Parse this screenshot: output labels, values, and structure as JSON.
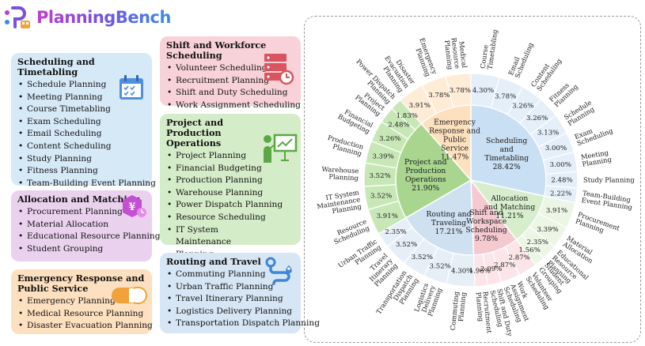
{
  "logo": {
    "text": "PlanningBench"
  },
  "categories": [
    {
      "id": "scheduling",
      "title": "Scheduling and Timetabling",
      "fill": "#d6e9f7",
      "accent": "#4f8fe0",
      "items": [
        "Schedule Planning",
        "Meeting Planning",
        "Course Timetabling",
        "Exam Scheduling",
        "Email Scheduling",
        "Content Scheduling",
        "Study Planning",
        "Fitness Planning",
        "Team-Building Event Planning"
      ]
    },
    {
      "id": "allocation",
      "title": "Allocation and Matching",
      "fill": "#ead2ef",
      "accent": "#c34fd1",
      "items": [
        "Procurement Planning",
        "Material Allocation",
        "Educational Resource Planning",
        "Student Grouping"
      ]
    },
    {
      "id": "emergency",
      "title": "Emergency Response and Public Service",
      "fill": "#fde0bf",
      "accent": "#f0a33b",
      "items": [
        "Emergency Planning",
        "Medical Resource Planning",
        "Disaster Evacuation Planning"
      ]
    },
    {
      "id": "shift",
      "title": "Shift and Workforce Scheduling",
      "fill": "#f8d2d8",
      "accent": "#d85560",
      "items": [
        "Volunteer Scheduling",
        "Recruitment Planning",
        "Shift and Duty Scheduling",
        "Work Assignment Scheduling"
      ]
    },
    {
      "id": "project",
      "title": "Project and Production Operations",
      "fill": "#d5ecc9",
      "accent": "#5aa844",
      "items": [
        "Project Planning",
        "Financial Budgeting",
        "Production Planning",
        "Warehouse Planning",
        "Power Dispatch Planning",
        "Resource Scheduling",
        "IT System Maintenance Planning"
      ]
    },
    {
      "id": "routing",
      "title": "Routing and Travel",
      "fill": "#d6e6f5",
      "accent": "#3e86d6",
      "items": [
        "Commuting Planning",
        "Urban Traffic Planning",
        "Travel Itinerary Planning",
        "Logistics Delivery Planning",
        "Transportation Dispatch Planning"
      ]
    }
  ],
  "chart_data": {
    "type": "sunburst",
    "inner": [
      {
        "label": "Scheduling and Timetabling",
        "value": 28.42,
        "value_label": "28.42%",
        "color": "#c9dff3",
        "outer_color": "#e4eff9"
      },
      {
        "label": "Allocation and Matching",
        "value": 11.21,
        "value_label": "11.21%",
        "color": "#d7eecd",
        "outer_color": "#ebf6e5"
      },
      {
        "label": "Shift and Workspace Scheduling",
        "value": 9.78,
        "value_label": "9.78%",
        "color": "#f5c9d0",
        "outer_color": "#fbe5e8"
      },
      {
        "label": "Routing and Traveling",
        "value": 17.21,
        "value_label": "17.21%",
        "color": "#cfe0f1",
        "outer_color": "#e6eff8"
      },
      {
        "label": "Project and Production Operations",
        "value": 21.9,
        "value_label": "21.90%",
        "color": "#a9d68f",
        "outer_color": "#c8e7b6"
      },
      {
        "label": "Emergency Response and Public Service",
        "value": 11.47,
        "value_label": "11.47%",
        "color": "#fde0bd",
        "outer_color": "#feecd6"
      }
    ],
    "outer": [
      {
        "label": "Course Timetabling",
        "value": 4.3,
        "value_label": "4.30%",
        "parent": 0
      },
      {
        "label": "Email Scheduling",
        "value": 3.78,
        "value_label": "3.78%",
        "parent": 0
      },
      {
        "label": "Content Scheduling",
        "value": 3.26,
        "value_label": "3.26%",
        "parent": 0
      },
      {
        "label": "Fitness Planning",
        "value": 3.26,
        "value_label": "3.26%",
        "parent": 0
      },
      {
        "label": "Schedule Planning",
        "value": 3.13,
        "value_label": "3.13%",
        "parent": 0
      },
      {
        "label": "Exam Scheduling",
        "value": 3.0,
        "value_label": "3.00%",
        "parent": 0
      },
      {
        "label": "Meeting Planning",
        "value": 3.0,
        "value_label": "3.00%",
        "parent": 0
      },
      {
        "label": "Study Planning",
        "value": 2.48,
        "value_label": "2.48%",
        "parent": 0
      },
      {
        "label": "Team-Building Event Planning",
        "value": 2.22,
        "value_label": "2.22%",
        "parent": 0
      },
      {
        "label": "Procurement Planning",
        "value": 3.91,
        "value_label": "3.91%",
        "parent": 1
      },
      {
        "label": "Material Allocation",
        "value": 3.39,
        "value_label": "3.39%",
        "parent": 1
      },
      {
        "label": "Educational Resource Planning",
        "value": 2.35,
        "value_label": "2.35%",
        "parent": 1
      },
      {
        "label": "Student Grouping",
        "value": 1.56,
        "value_label": "1.56%",
        "parent": 1
      },
      {
        "label": "Volunteer Scheduling",
        "value": 2.87,
        "value_label": "2.87%",
        "parent": 2
      },
      {
        "label": "Work Assignment Scheduling",
        "value": 2.87,
        "value_label": "2.87%",
        "parent": 2
      },
      {
        "label": "Shift and Duty Scheduling",
        "value": 2.09,
        "value_label": "2.09%",
        "parent": 2
      },
      {
        "label": "Recruitment Planning",
        "value": 1.96,
        "value_label": "1.96%",
        "parent": 2
      },
      {
        "label": "Commuting Planning",
        "value": 4.3,
        "value_label": "4.30%",
        "parent": 3
      },
      {
        "label": "Logistics Delivery Planning",
        "value": 3.52,
        "value_label": "3.52%",
        "parent": 3
      },
      {
        "label": "Transportation Dispatch Planning",
        "value": 3.52,
        "value_label": "3.52%",
        "parent": 3
      },
      {
        "label": "Travel Itinerary Planning",
        "value": 3.52,
        "value_label": "3.52%",
        "parent": 3
      },
      {
        "label": "Urban Traffic Planning",
        "value": 2.35,
        "value_label": "2.35%",
        "parent": 3
      },
      {
        "label": "Resource Scheduling",
        "value": 3.91,
        "value_label": "3.91%",
        "parent": 4
      },
      {
        "label": "IT System Maintenance Planning",
        "value": 3.52,
        "value_label": "3.52%",
        "parent": 4
      },
      {
        "label": "Warehouse Planning",
        "value": 3.52,
        "value_label": "3.52%",
        "parent": 4
      },
      {
        "label": "Production Planning",
        "value": 3.39,
        "value_label": "3.39%",
        "parent": 4
      },
      {
        "label": "Financial Budgeting",
        "value": 3.26,
        "value_label": "3.26%",
        "parent": 4
      },
      {
        "label": "Project Planning",
        "value": 2.48,
        "value_label": "2.48%",
        "parent": 4
      },
      {
        "label": "Power Dispatch Planning",
        "value": 1.83,
        "value_label": "1.83%",
        "parent": 4
      },
      {
        "label": "Disaster Evacuation Planning",
        "value": 3.91,
        "value_label": "3.91%",
        "parent": 5
      },
      {
        "label": "Emergency Planning",
        "value": 3.78,
        "value_label": "3.78%",
        "parent": 5
      },
      {
        "label": "Medical Resource Planning",
        "value": 3.78,
        "value_label": "3.78%",
        "parent": 5
      }
    ]
  }
}
